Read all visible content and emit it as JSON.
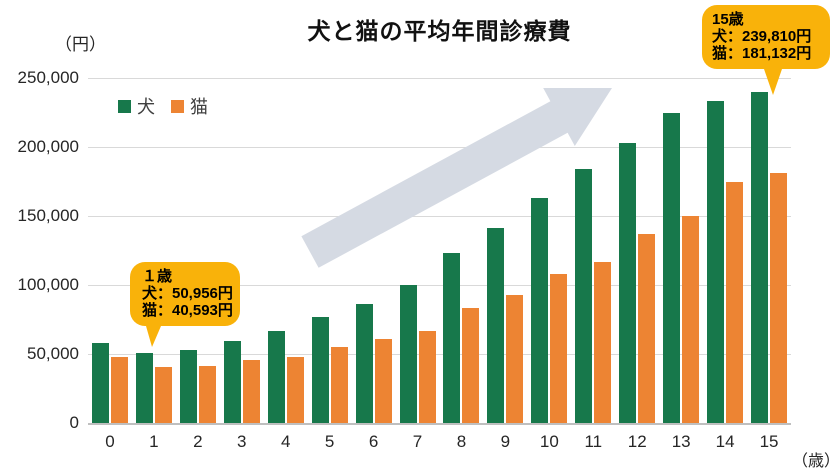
{
  "title": "犬と猫の平均年間診療費",
  "y_axis_unit": "（円）",
  "x_axis_unit": "（歳）",
  "legend": {
    "dog": "犬",
    "cat": "猫"
  },
  "colors": {
    "dog": "#17784B",
    "cat": "#ED8433",
    "arrow": "#D5DAE3",
    "bubble": "#F9B20A",
    "grid": "#D9D9D9",
    "text": "#262626"
  },
  "callouts": {
    "age1": {
      "heading": "１歳",
      "dog_line": "犬：50,956円",
      "cat_line": "猫：40,593円"
    },
    "age15": {
      "heading": "15歳",
      "dog_line": "犬：239,810円",
      "cat_line": "猫：181,132円"
    }
  },
  "chart_data": {
    "type": "bar",
    "title": "犬と猫の平均年間診療費",
    "categories": [
      "0",
      "1",
      "2",
      "3",
      "4",
      "5",
      "6",
      "7",
      "8",
      "9",
      "10",
      "11",
      "12",
      "13",
      "14",
      "15"
    ],
    "series": [
      {
        "name": "犬",
        "color": "#17784B",
        "values": [
          58000,
          50956,
          53000,
          59500,
          67000,
          77000,
          86000,
          100000,
          123000,
          141000,
          163000,
          184000,
          203000,
          225000,
          233000,
          239810
        ]
      },
      {
        "name": "猫",
        "color": "#ED8433",
        "values": [
          48000,
          40593,
          41000,
          45500,
          47500,
          55000,
          61000,
          67000,
          83000,
          92500,
          108000,
          117000,
          137000,
          150000,
          175000,
          181132
        ]
      }
    ],
    "xlabel": "（歳）",
    "ylabel": "（円）",
    "ylim": [
      0,
      250000
    ],
    "yticks": [
      "250,000",
      "200,000",
      "150,000",
      "100,000",
      "50,000",
      "0"
    ],
    "grid": "horizontal",
    "legend_position": "top-left",
    "annotations": [
      {
        "target_age": 1,
        "text": "１歳 犬：50,956円 猫：40,593円"
      },
      {
        "target_age": 15,
        "text": "15歳 犬：239,810円 猫：181,132円"
      }
    ]
  }
}
